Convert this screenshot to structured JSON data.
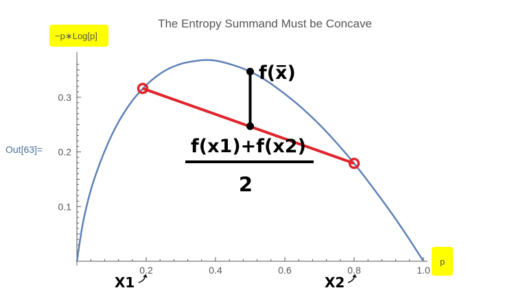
{
  "cell_label": "Out[63]=",
  "chart_data": {
    "type": "line",
    "title": "The Entropy Summand Must be Concave",
    "xlabel": "p",
    "ylabel": "−p∗Log[p]",
    "xlim": [
      0,
      1.0
    ],
    "ylim": [
      0,
      0.37
    ],
    "x_ticks": [
      "0.2",
      "0.4",
      "0.6",
      "0.8",
      "1.0"
    ],
    "y_ticks": [
      "0.1",
      "0.2",
      "0.3"
    ],
    "grid": false,
    "highlight_color": "#ffff00",
    "series": [
      {
        "color": "#5e81b5",
        "x": [
          0,
          0.02,
          0.05,
          0.1,
          0.15,
          0.2,
          0.25,
          0.3,
          0.35,
          0.3679,
          0.4,
          0.45,
          0.5,
          0.55,
          0.6,
          0.65,
          0.7,
          0.75,
          0.8,
          0.85,
          0.9,
          0.95,
          1.0
        ],
        "y": [
          0,
          0.078,
          0.15,
          0.23,
          0.285,
          0.322,
          0.347,
          0.361,
          0.367,
          0.368,
          0.367,
          0.359,
          0.347,
          0.329,
          0.306,
          0.28,
          0.25,
          0.216,
          0.179,
          0.138,
          0.095,
          0.049,
          0
        ]
      }
    ],
    "secant": {
      "color": "#e0242c",
      "points": [
        {
          "x": 0.19,
          "y": 0.316
        },
        {
          "x": 0.8,
          "y": 0.179
        }
      ]
    },
    "gap_segment": {
      "color": "#000000",
      "x": 0.5,
      "y_top": 0.347,
      "y_bottom": 0.247
    },
    "annotations": {
      "fx_label": "f(x̅)",
      "secant_label": "f(x1)+f(x2)",
      "denominator": "2",
      "x1_label": "X1",
      "x2_label": "X2"
    }
  }
}
